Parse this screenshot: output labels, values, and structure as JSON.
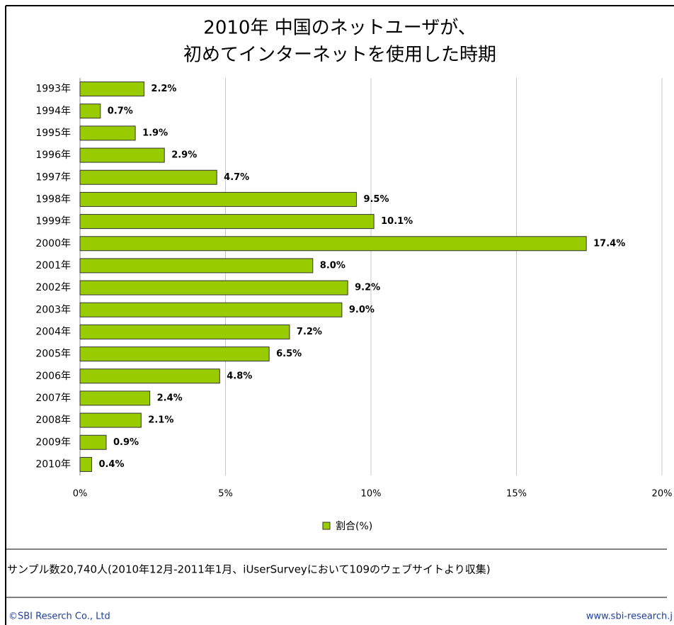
{
  "chart_data": {
    "type": "barh",
    "title": [
      "2010年 中国のネットユーザが、",
      "初めてインターネットを使用した時期"
    ],
    "categories": [
      "1993年",
      "1994年",
      "1995年",
      "1996年",
      "1997年",
      "1998年",
      "1999年",
      "2000年",
      "2001年",
      "2002年",
      "2003年",
      "2004年",
      "2005年",
      "2006年",
      "2007年",
      "2008年",
      "2009年",
      "2010年"
    ],
    "series": [
      {
        "name": "割合(%)",
        "color": "#99cc00",
        "values": [
          2.2,
          0.7,
          1.9,
          2.9,
          4.7,
          9.5,
          10.1,
          17.4,
          8.0,
          9.2,
          9.0,
          7.2,
          6.5,
          4.8,
          2.4,
          2.1,
          0.9,
          0.4
        ],
        "value_labels": [
          "2.2%",
          "0.7%",
          "1.9%",
          "2.9%",
          "4.7%",
          "9.5%",
          "10.1%",
          "17.4%",
          "8.0%",
          "9.2%",
          "9.0%",
          "7.2%",
          "6.5%",
          "4.8%",
          "2.4%",
          "2.1%",
          "0.9%",
          "0.4%"
        ]
      }
    ],
    "xlim": [
      0,
      20
    ],
    "xticks": [
      {
        "value": 0,
        "label": "0%"
      },
      {
        "value": 5,
        "label": "5%"
      },
      {
        "value": 10,
        "label": "10%"
      },
      {
        "value": 15,
        "label": "15%"
      },
      {
        "value": 20,
        "label": "20%"
      }
    ],
    "grid": true,
    "legend": "bottom",
    "note": "サンプル数20,740人(2010年12月-2011年1月、iUserSurveyにおいて109のウェブサイトより収集)",
    "copyright": "©SBI Reserch Co., Ltd",
    "url": "www.sbi-research.j"
  }
}
